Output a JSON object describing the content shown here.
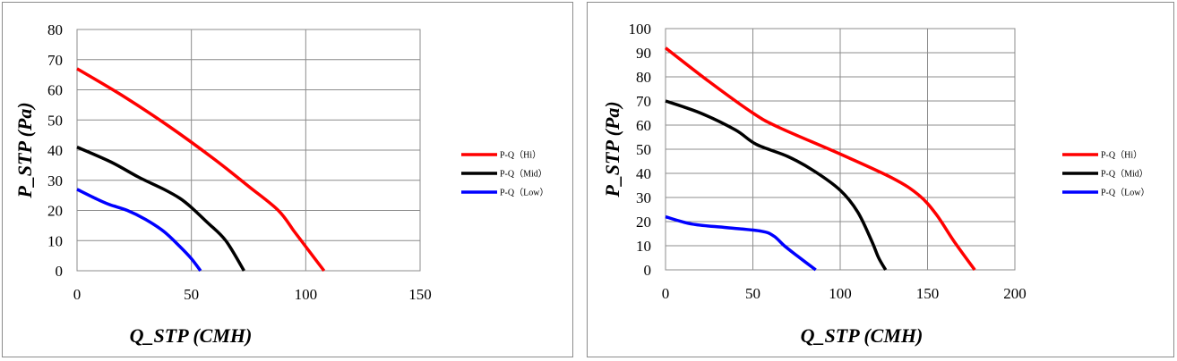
{
  "chart_data": [
    {
      "type": "line",
      "xlabel": "Q_STP (CMH)",
      "ylabel": "P_STP (Pa)",
      "xlim": [
        0,
        150
      ],
      "ylim": [
        0,
        80
      ],
      "xticks": [
        0,
        50,
        100,
        150
      ],
      "yticks": [
        0,
        10,
        20,
        30,
        40,
        50,
        60,
        70,
        80
      ],
      "grid": true,
      "legend_position": "right",
      "series": [
        {
          "name": "P-Q（Hi）",
          "color": "#ff0000",
          "x": [
            0,
            20,
            40,
            60,
            75,
            88,
            95,
            100,
            108
          ],
          "y": [
            67,
            58,
            48,
            37,
            28,
            20,
            13,
            8,
            0
          ]
        },
        {
          "name": "P-Q（Mid）",
          "color": "#000000",
          "x": [
            0,
            15,
            27,
            38,
            45,
            50,
            57,
            65,
            73
          ],
          "y": [
            41,
            36,
            31,
            27,
            24,
            21,
            16,
            10,
            0
          ]
        },
        {
          "name": "P-Q（Low）",
          "color": "#0000ff",
          "x": [
            0,
            8,
            14,
            22,
            30,
            38,
            45,
            50,
            54
          ],
          "y": [
            27,
            24,
            22,
            20,
            17,
            13,
            8,
            4,
            0
          ]
        }
      ]
    },
    {
      "type": "line",
      "xlabel": "Q_STP (CMH)",
      "ylabel": "P_STP (Pa)",
      "xlim": [
        0,
        200
      ],
      "ylim": [
        0,
        100
      ],
      "xticks": [
        0,
        50,
        100,
        150,
        200
      ],
      "yticks": [
        0,
        10,
        20,
        30,
        40,
        50,
        60,
        70,
        80,
        90,
        100
      ],
      "grid": true,
      "legend_position": "right",
      "series": [
        {
          "name": "P-Q（Hi）",
          "color": "#ff0000",
          "x": [
            0,
            25,
            50,
            65,
            100,
            130,
            145,
            155,
            165,
            177
          ],
          "y": [
            92,
            78,
            65,
            59,
            48,
            38,
            31,
            23,
            12,
            0
          ]
        },
        {
          "name": "P-Q（Mid）",
          "color": "#000000",
          "x": [
            0,
            20,
            40,
            52,
            70,
            85,
            100,
            110,
            118,
            122,
            126
          ],
          "y": [
            70,
            65,
            58,
            52,
            47,
            41,
            33,
            24,
            12,
            5,
            0
          ]
        },
        {
          "name": "P-Q（Low）",
          "color": "#0000ff",
          "x": [
            0,
            15,
            35,
            55,
            62,
            68,
            75,
            86
          ],
          "y": [
            22,
            19,
            17.5,
            16,
            14,
            10,
            6,
            0
          ]
        }
      ]
    }
  ]
}
